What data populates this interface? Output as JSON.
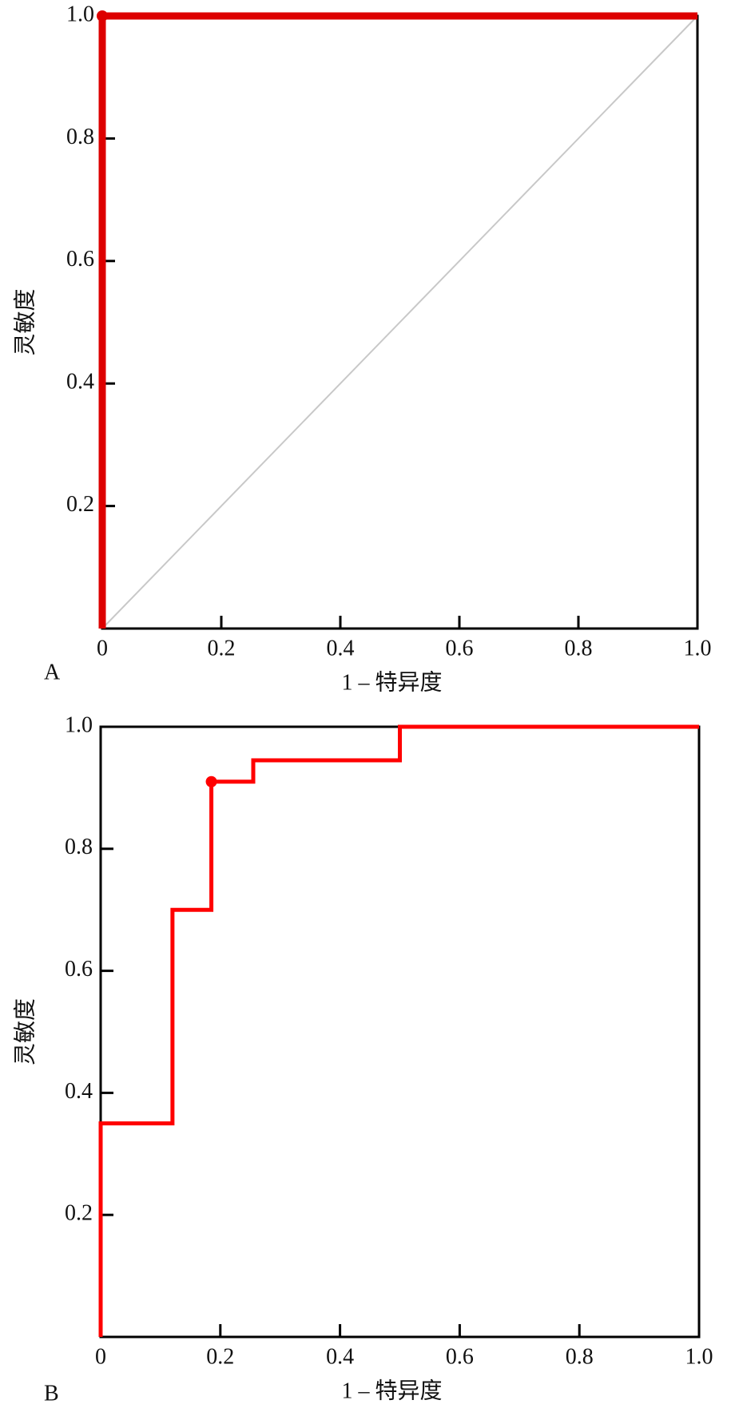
{
  "chart_data": [
    {
      "type": "line",
      "panel": "A",
      "xlabel": "1 – 特异度",
      "ylabel": "灵敏度",
      "color": "#dd0000",
      "x": [
        0,
        0,
        1
      ],
      "values": [
        0,
        1,
        1
      ],
      "marker_x": 0,
      "marker_y": 1,
      "reference_line": true,
      "xlim": [
        0,
        1
      ],
      "ylim": [
        0,
        1
      ],
      "xticks": [
        0,
        0.2,
        0.4,
        0.6,
        0.8,
        {
          "value": 1,
          "label": "1.0"
        }
      ],
      "yticks": [
        0.2,
        0.4,
        0.6,
        0.8,
        {
          "value": 1,
          "label": "1.0"
        }
      ]
    },
    {
      "type": "line",
      "panel": "B",
      "xlabel": "1 – 特异度",
      "ylabel": "灵敏度",
      "color": "#ff0000",
      "x": [
        0,
        0,
        0.12,
        0.12,
        0.185,
        0.185,
        0.255,
        0.255,
        0.5,
        0.5,
        1
      ],
      "values": [
        0,
        0.35,
        0.35,
        0.7,
        0.7,
        0.91,
        0.91,
        0.945,
        0.945,
        1,
        1
      ],
      "marker_x": 0.185,
      "marker_y": 0.91,
      "reference_line": false,
      "xlim": [
        0,
        1
      ],
      "ylim": [
        0,
        1
      ],
      "xticks": [
        0,
        0.2,
        0.4,
        0.6,
        0.8,
        {
          "value": 1,
          "label": "1.0"
        }
      ],
      "yticks": [
        0.2,
        0.4,
        0.6,
        0.8,
        {
          "value": 1,
          "label": "1.0"
        }
      ]
    }
  ]
}
